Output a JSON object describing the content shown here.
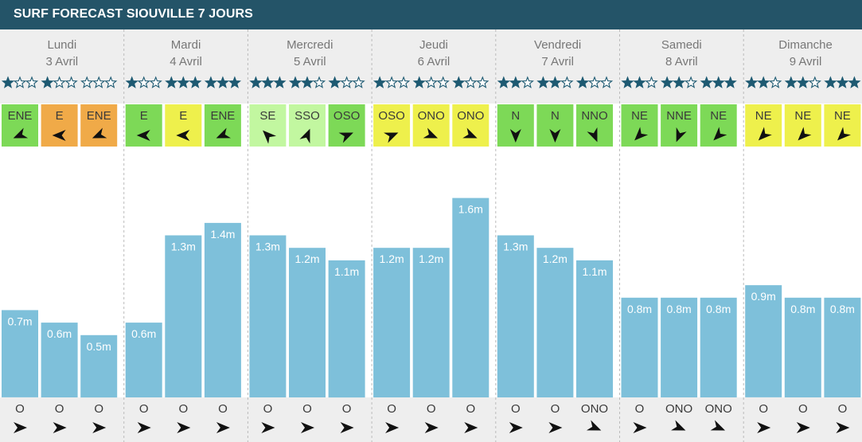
{
  "title": "SURF FORECAST SIOUVILLE 7 JOURS",
  "colors": {
    "header": "#245468",
    "day_background": "#eeeeee",
    "bar": "#7ec0da",
    "star": "#1e5a72",
    "wind_offshore": "#7dd957",
    "wind_cross": "#eef04c",
    "wind_onshore": "#f0aa48",
    "wind_light": "#c2f7a0"
  },
  "chart_data": {
    "type": "bar",
    "title": "SURF FORECAST SIOUVILLE 7 JOURS",
    "unit": "m",
    "days": [
      {
        "name": "Lundi",
        "date": "3 Avril"
      },
      {
        "name": "Mardi",
        "date": "4 Avril"
      },
      {
        "name": "Mercredi",
        "date": "5 Avril"
      },
      {
        "name": "Jeudi",
        "date": "6 Avril"
      },
      {
        "name": "Vendredi",
        "date": "7 Avril"
      },
      {
        "name": "Samedi",
        "date": "8 Avril"
      },
      {
        "name": "Dimanche",
        "date": "9 Avril"
      }
    ],
    "wave_height_m": [
      0.7,
      0.6,
      0.5,
      0.6,
      1.3,
      1.4,
      1.3,
      1.2,
      1.1,
      1.2,
      1.2,
      1.6,
      1.3,
      1.2,
      1.1,
      0.8,
      0.8,
      0.8,
      0.9,
      0.8,
      0.8
    ],
    "wave_labels": [
      "0.7m",
      "0.6m",
      "0.5m",
      "0.6m",
      "1.3m",
      "1.4m",
      "1.3m",
      "1.2m",
      "1.1m",
      "1.2m",
      "1.2m",
      "1.6m",
      "1.3m",
      "1.2m",
      "1.1m",
      "0.8m",
      "0.8m",
      "0.8m",
      "0.9m",
      "0.8m",
      "0.8m"
    ],
    "stars": [
      1,
      1,
      0,
      1,
      3,
      3,
      3,
      2,
      1,
      1,
      1,
      1,
      2,
      2,
      1,
      2,
      2,
      3,
      2,
      2,
      3
    ],
    "star_max": 3,
    "wind_direction": [
      "ENE",
      "E",
      "ENE",
      "E",
      "E",
      "ENE",
      "SE",
      "SSO",
      "OSO",
      "OSO",
      "ONO",
      "ONO",
      "N",
      "N",
      "NNO",
      "NE",
      "NNE",
      "NE",
      "NE",
      "NE",
      "NE"
    ],
    "wind_type": [
      "offshore",
      "onshore",
      "onshore",
      "offshore",
      "cross",
      "offshore",
      "light",
      "light",
      "offshore",
      "cross",
      "cross",
      "cross",
      "offshore",
      "offshore",
      "offshore",
      "offshore",
      "offshore",
      "offshore",
      "cross",
      "cross",
      "cross"
    ],
    "swell_direction": [
      "O",
      "O",
      "O",
      "O",
      "O",
      "O",
      "O",
      "O",
      "O",
      "O",
      "O",
      "O",
      "O",
      "O",
      "ONO",
      "O",
      "ONO",
      "ONO",
      "O",
      "O",
      "O"
    ],
    "ylim": [
      0,
      2.5
    ]
  }
}
